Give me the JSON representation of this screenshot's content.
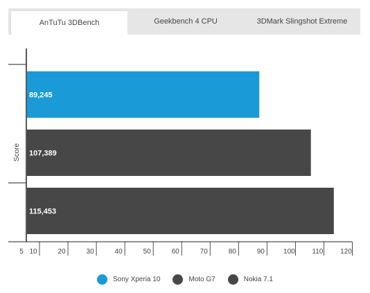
{
  "tabs": [
    {
      "label": "AnTuTu 3DBench",
      "active": true
    },
    {
      "label": "Geekbench 4 CPU",
      "active": false
    },
    {
      "label": "3DMark Slingshot Extreme",
      "active": false
    }
  ],
  "chart_data": {
    "type": "bar",
    "orientation": "horizontal",
    "ylabel": "Score",
    "x_ticks": [
      5,
      10,
      20,
      30,
      40,
      50,
      60,
      70,
      80,
      90,
      100,
      110,
      120
    ],
    "xlim": [
      5,
      122
    ],
    "series": [
      {
        "name": "Sony Xperia 10",
        "value": 89.245,
        "label": "89,245",
        "color": "#1a9ad6"
      },
      {
        "name": "Moto G7",
        "value": 107.389,
        "label": "107,389",
        "color": "#474747"
      },
      {
        "name": "Nokia 7.1",
        "value": 115.453,
        "label": "115,453",
        "color": "#474747"
      }
    ],
    "grid": false,
    "legend_position": "bottom"
  },
  "legend": [
    {
      "label": "Sony Xperia 10",
      "color": "#1a9ad6"
    },
    {
      "label": "Moto G7",
      "color": "#474747"
    },
    {
      "label": "Nokia 7.1",
      "color": "#474747"
    }
  ]
}
